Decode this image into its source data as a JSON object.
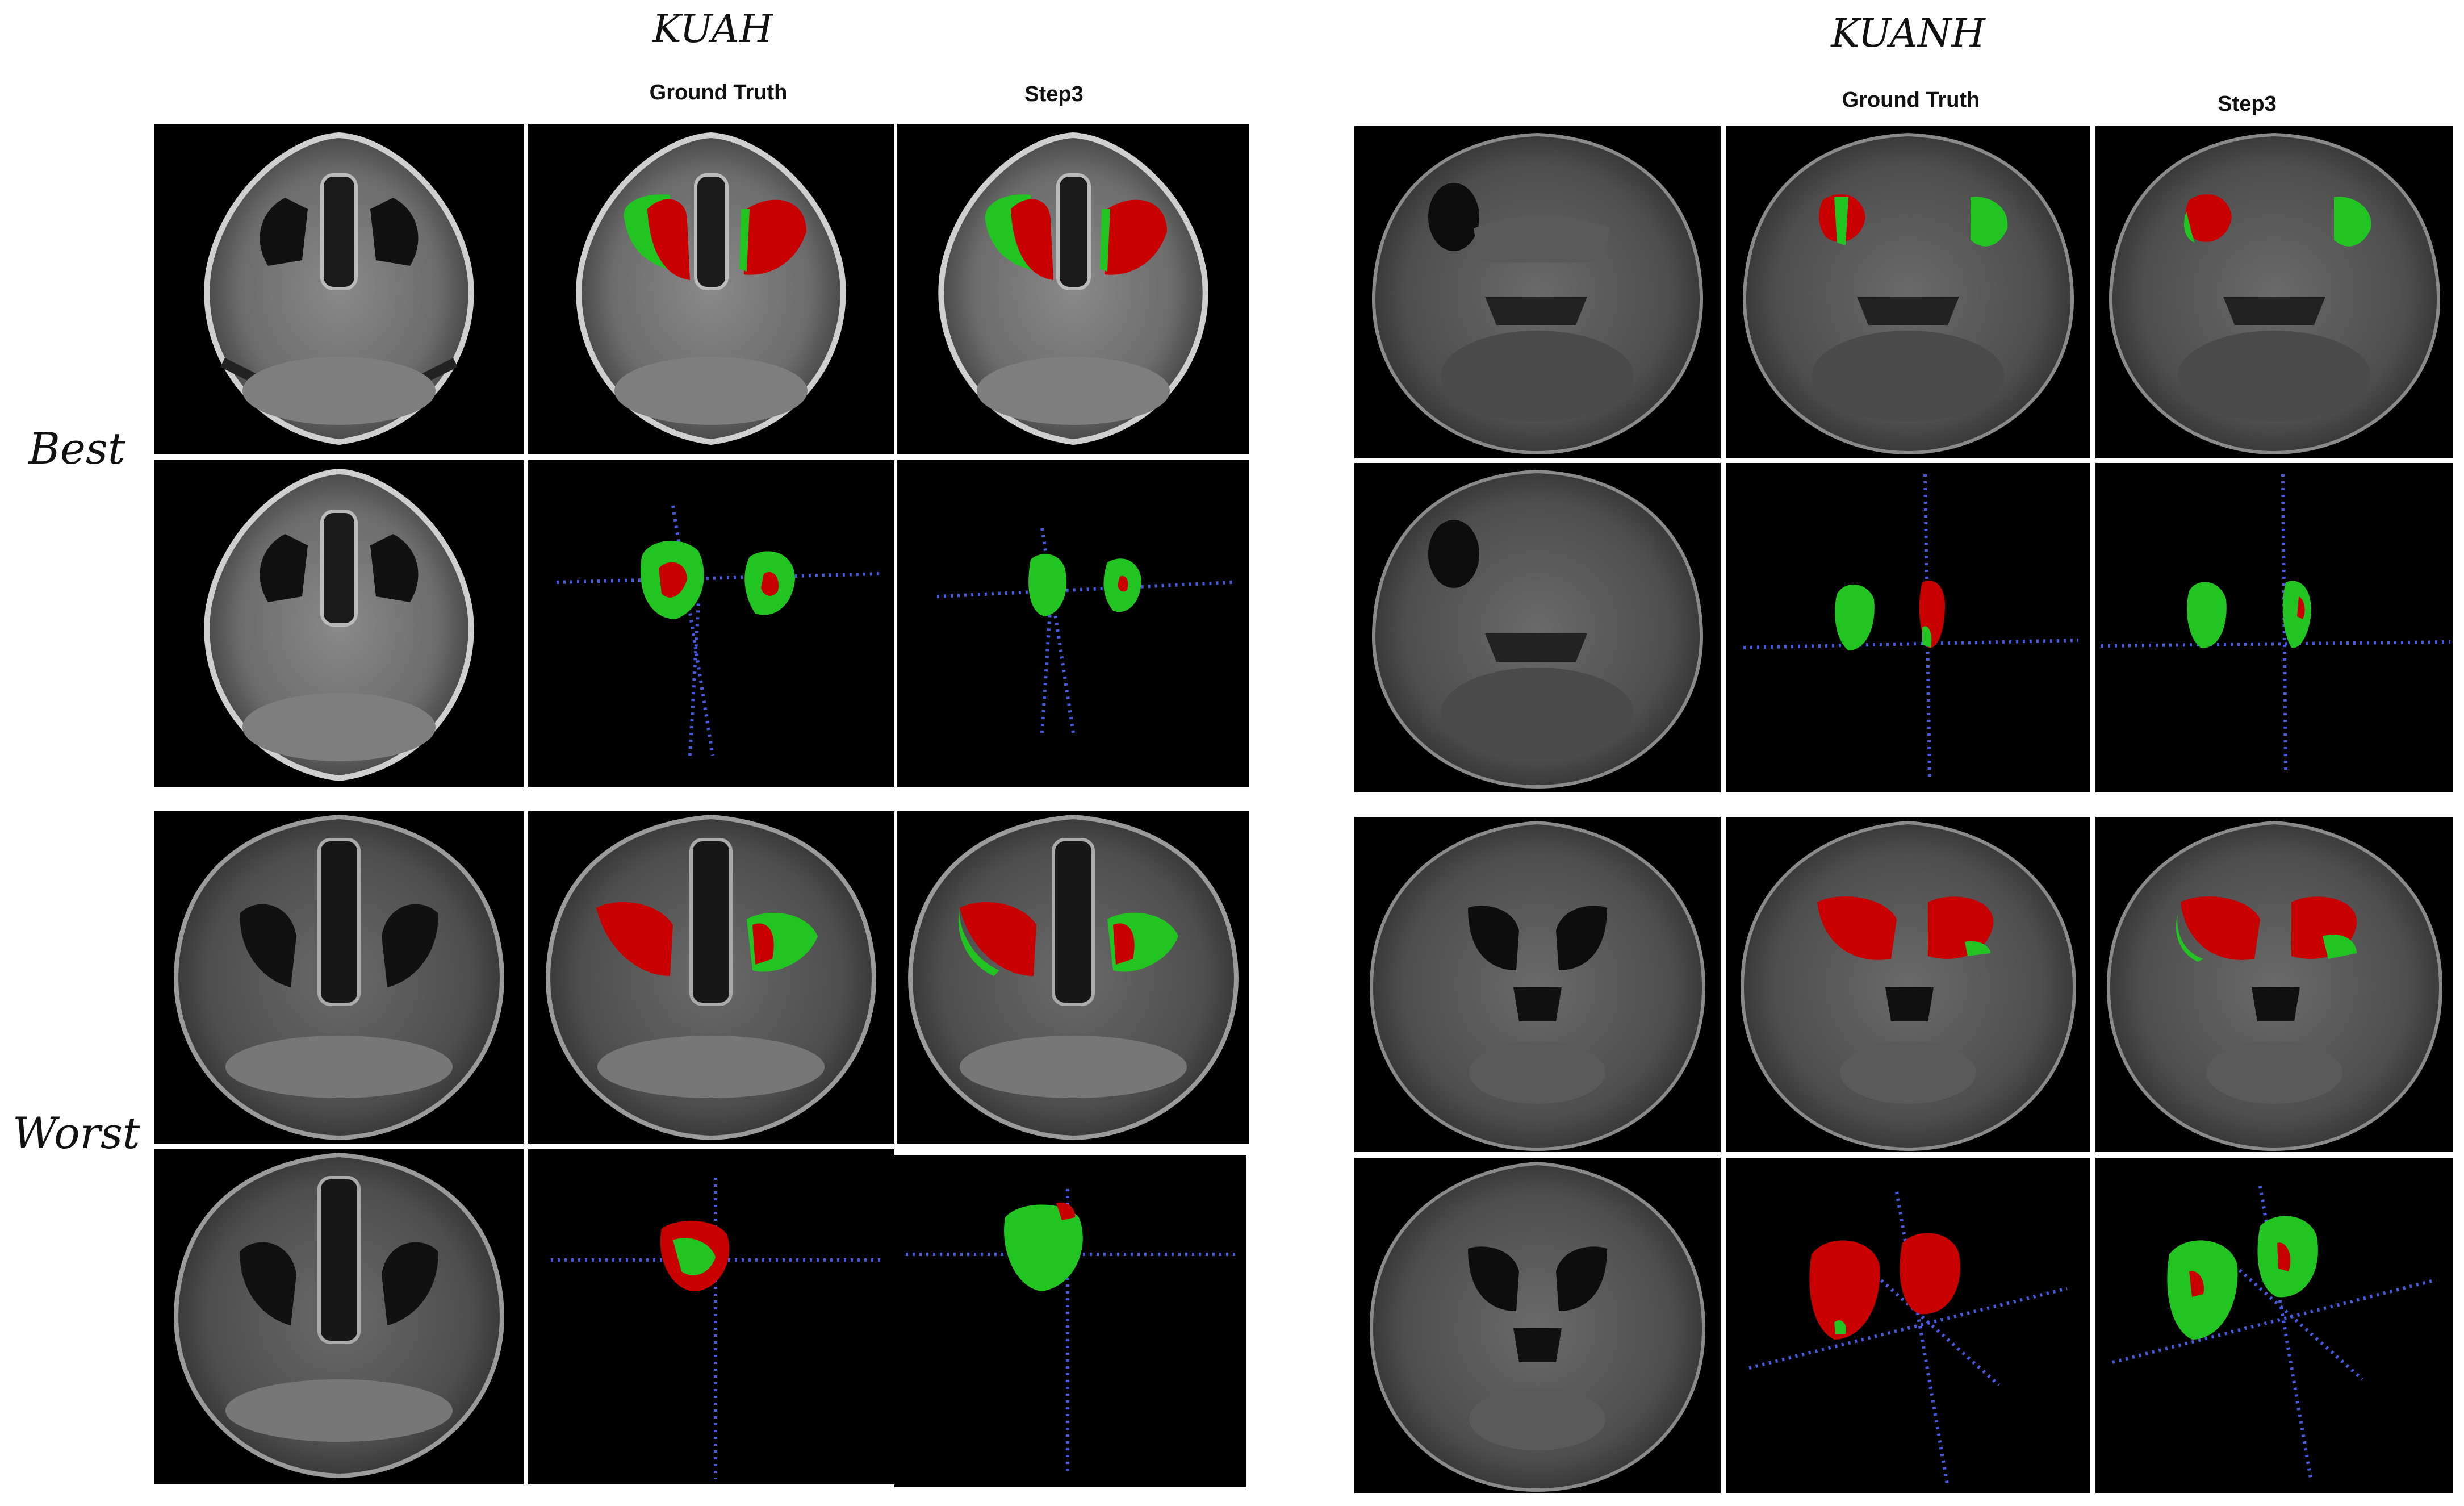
{
  "groups": [
    {
      "title": "KUAH",
      "col_headers": [
        "Ground Truth",
        "Step3"
      ]
    },
    {
      "title": "KUANH",
      "col_headers": [
        "Ground Truth",
        "Step3"
      ]
    }
  ],
  "row_labels": [
    "Best",
    "Worst"
  ],
  "colors": {
    "ground_truth_overlap": "#c80000",
    "prediction_only": "#22c422",
    "axis_dots": "#4a5ae0",
    "background": "#000000"
  }
}
